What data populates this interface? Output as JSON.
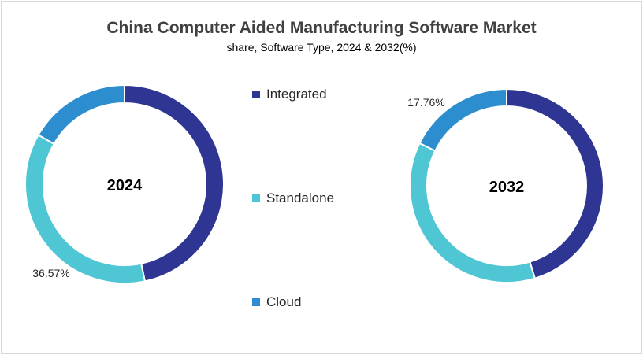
{
  "chart_data": [
    {
      "type": "pie",
      "title": "China Computer Aided Manufacturing Software Market",
      "subtitle": "share, Software Type, 2024 & 2032(%)",
      "center_label": "2024",
      "categories": [
        "Integrated",
        "Standalone",
        "Cloud"
      ],
      "values": [
        46.7,
        36.57,
        16.73
      ],
      "data_labels": {
        "Standalone": "36.57%"
      },
      "colors": [
        "#2e3592",
        "#4fc6d3",
        "#2d8ecf"
      ]
    },
    {
      "type": "pie",
      "center_label": "2032",
      "categories": [
        "Integrated",
        "Standalone",
        "Cloud"
      ],
      "values": [
        45.3,
        36.94,
        17.76
      ],
      "data_labels": {
        "Cloud": "17.76%"
      },
      "colors": [
        "#2e3592",
        "#4fc6d3",
        "#2d8ecf"
      ]
    }
  ],
  "legend": [
    {
      "label": "Integrated",
      "color": "#2e3592"
    },
    {
      "label": "Standalone",
      "color": "#4fc6d3"
    },
    {
      "label": "Cloud",
      "color": "#2d8ecf"
    }
  ]
}
